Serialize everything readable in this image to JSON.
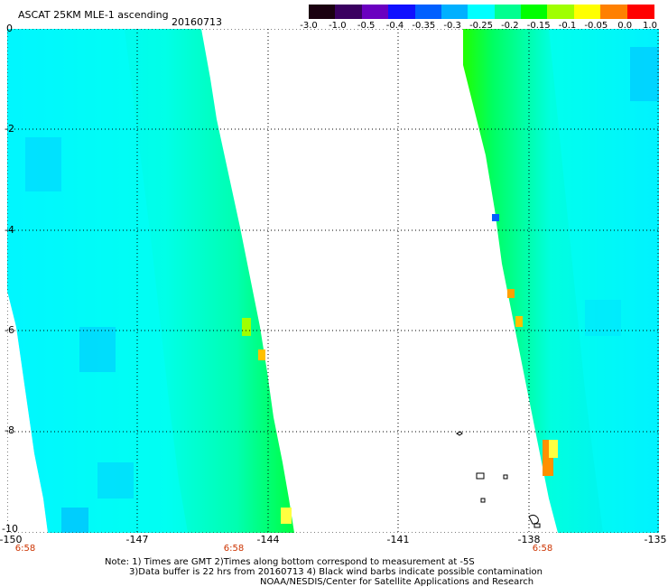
{
  "header": {
    "title": "ASCAT 25KM MLE-1 ascending",
    "date": "20160713"
  },
  "colorbar": {
    "labels": [
      "-3.0",
      "-1.0",
      "-0.5",
      "-0.4",
      "-0.35",
      "-0.3",
      "-0.25",
      "-0.2",
      "-0.15",
      "-0.1",
      "-0.05",
      "0.0",
      "1.0"
    ],
    "colors": [
      "#1a0010",
      "#3a0060",
      "#6a00c0",
      "#1010ff",
      "#0060ff",
      "#00b0ff",
      "#00ffff",
      "#00ff90",
      "#00ff00",
      "#a0ff00",
      "#ffff00",
      "#ff8000",
      "#ff0000"
    ]
  },
  "axes": {
    "y_ticks": [
      "0",
      "-2",
      "-4",
      "-6",
      "-8",
      "-10"
    ],
    "x_ticks": [
      "-150",
      "-147",
      "-144",
      "-141",
      "-138",
      "-135"
    ],
    "time_ticks": [
      "6:58",
      "6:58",
      "6:58"
    ]
  },
  "map": {
    "swath_left": {
      "dominant_color": "#00ffff",
      "edge_color": "#00ff00"
    },
    "swath_right": {
      "dominant_color": "#00ffff",
      "edge_color": "#00ff00"
    },
    "background": "#ffffff",
    "grid_style": "dotted"
  },
  "notes": {
    "line1": "Note: 1) Times are GMT 2)Times along bottom correspond to measurement at -5S",
    "line2": "3)Data buffer is 22 hrs from 20160713 4) Black wind barbs indicate possible contamination",
    "line3": "NOAA/NESDIS/Center for Satellite Applications and Research"
  }
}
